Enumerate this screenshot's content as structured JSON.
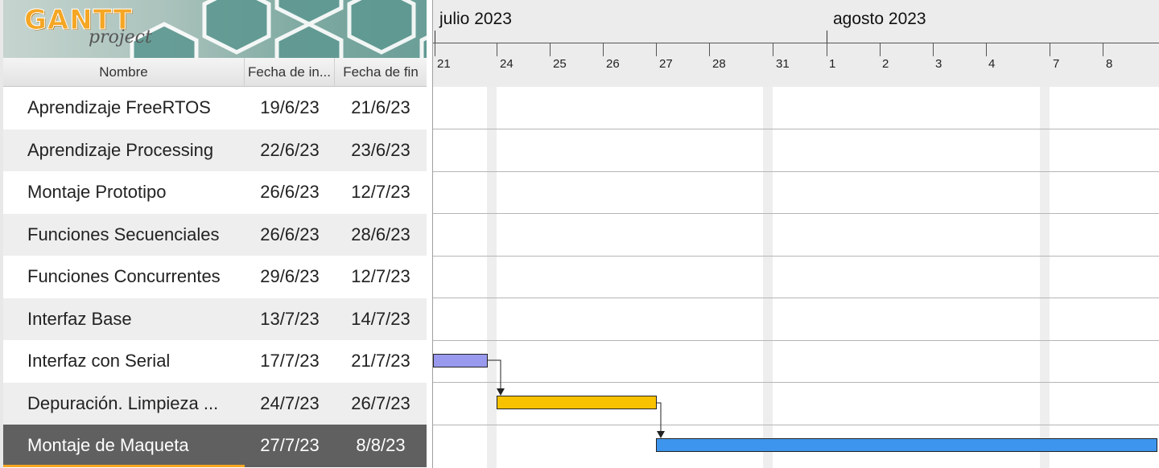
{
  "app": {
    "logo_main": "GANTT",
    "logo_sub": "project"
  },
  "table": {
    "columns": {
      "name": "Nombre",
      "start": "Fecha de in...",
      "end": "Fecha de fin"
    },
    "rows": [
      {
        "name": "Aprendizaje FreeRTOS",
        "start": "19/6/23",
        "end": "21/6/23"
      },
      {
        "name": "Aprendizaje Processing",
        "start": "22/6/23",
        "end": "23/6/23"
      },
      {
        "name": "Montaje Prototipo",
        "start": "26/6/23",
        "end": "12/7/23"
      },
      {
        "name": "Funciones Secuenciales",
        "start": "26/6/23",
        "end": "28/6/23"
      },
      {
        "name": "Funciones Concurrentes",
        "start": "29/6/23",
        "end": "12/7/23"
      },
      {
        "name": "Interfaz Base",
        "start": "13/7/23",
        "end": "14/7/23"
      },
      {
        "name": "Interfaz con Serial",
        "start": "17/7/23",
        "end": "21/7/23"
      },
      {
        "name": "Depuración. Limpieza ...",
        "start": "24/7/23",
        "end": "26/7/23"
      },
      {
        "name": "Montaje de Maqueta",
        "start": "27/7/23",
        "end": "8/8/23"
      }
    ],
    "selected_row": 8
  },
  "timeline": {
    "months": [
      "julio 2023",
      "agosto 2023"
    ],
    "days": [
      "21",
      "24",
      "25",
      "26",
      "27",
      "28",
      "31",
      "1",
      "2",
      "3",
      "4",
      "7",
      "8"
    ]
  },
  "colors": {
    "bar_interfaz_serial": "#9999ee",
    "bar_depuracion": "#f8c200",
    "bar_maqueta": "#3d95ee",
    "selection": "#606060",
    "selection_accent": "#f5a623"
  }
}
